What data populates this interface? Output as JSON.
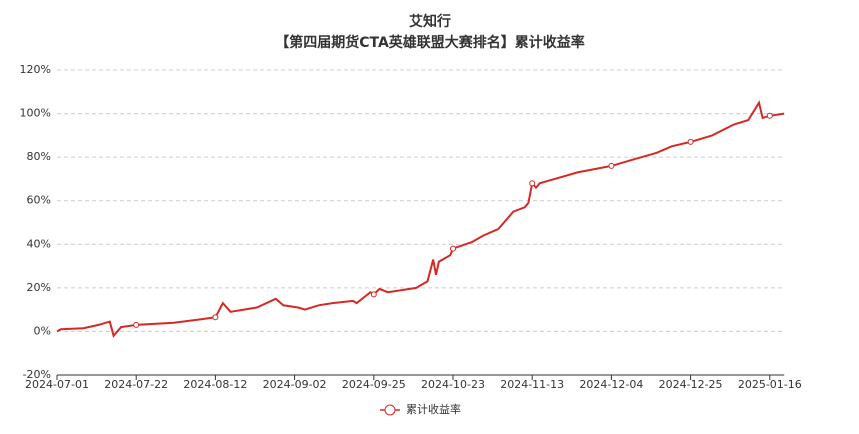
{
  "chart_data": {
    "type": "line",
    "title": "艾知行",
    "subtitle": "【第四届期货CTA英雄联盟大赛排名】累计收益率",
    "x": [
      "2024-07-01",
      "2024-07-02",
      "2024-07-08",
      "2024-07-12",
      "2024-07-15",
      "2024-07-16",
      "2024-07-18",
      "2024-07-22",
      "2024-08-01",
      "2024-08-08",
      "2024-08-12",
      "2024-08-14",
      "2024-08-16",
      "2024-08-23",
      "2024-08-28",
      "2024-08-30",
      "2024-09-03",
      "2024-09-05",
      "2024-09-09",
      "2024-09-13",
      "2024-09-19",
      "2024-09-20",
      "2024-09-24",
      "2024-09-25",
      "2024-09-27",
      "2024-09-30",
      "2024-10-10",
      "2024-10-14",
      "2024-10-16",
      "2024-10-17",
      "2024-10-18",
      "2024-10-22",
      "2024-10-23",
      "2024-10-28",
      "2024-10-31",
      "2024-11-04",
      "2024-11-07",
      "2024-11-08",
      "2024-11-11",
      "2024-11-12",
      "2024-11-13",
      "2024-11-14",
      "2024-11-15",
      "2024-11-19",
      "2024-11-25",
      "2024-12-04",
      "2024-12-10",
      "2024-12-16",
      "2024-12-20",
      "2024-12-25",
      "2024-12-31",
      "2025-01-06",
      "2025-01-10",
      "2025-01-13",
      "2025-01-14",
      "2025-01-16",
      "2025-01-20"
    ],
    "series": [
      {
        "name": "累计收益率",
        "color": "#d42a26",
        "values": [
          0,
          1,
          1.5,
          3,
          4.5,
          -2,
          2,
          3,
          4,
          5.5,
          6.5,
          13,
          9,
          11,
          15,
          12,
          11,
          10,
          12,
          13,
          14,
          13,
          18,
          17,
          19.5,
          18,
          20,
          23,
          33,
          26,
          32,
          35,
          38,
          41,
          44,
          47,
          53,
          55,
          57,
          59,
          68,
          66,
          68,
          70,
          73,
          76,
          79,
          82,
          85,
          87,
          90,
          95,
          97,
          105,
          98,
          99,
          100
        ]
      }
    ],
    "xlim": [
      "2024-07-01",
      "2025-01-20"
    ],
    "xticks": [
      "2024-07-01",
      "2024-07-22",
      "2024-08-12",
      "2024-09-02",
      "2024-09-25",
      "2024-10-23",
      "2024-11-13",
      "2024-12-04",
      "2024-12-25",
      "2025-01-16"
    ],
    "ylim": [
      -20,
      120
    ],
    "yticks": [
      {
        "value": -20,
        "label": "-20%"
      },
      {
        "value": 0,
        "label": "0%"
      },
      {
        "value": 20,
        "label": "20%"
      },
      {
        "value": 40,
        "label": "40%"
      },
      {
        "value": 60,
        "label": "60%"
      },
      {
        "value": 80,
        "label": "80%"
      },
      {
        "value": 100,
        "label": "100%"
      },
      {
        "value": 120,
        "label": "120%"
      }
    ],
    "grid": true,
    "legend": "bottom"
  }
}
